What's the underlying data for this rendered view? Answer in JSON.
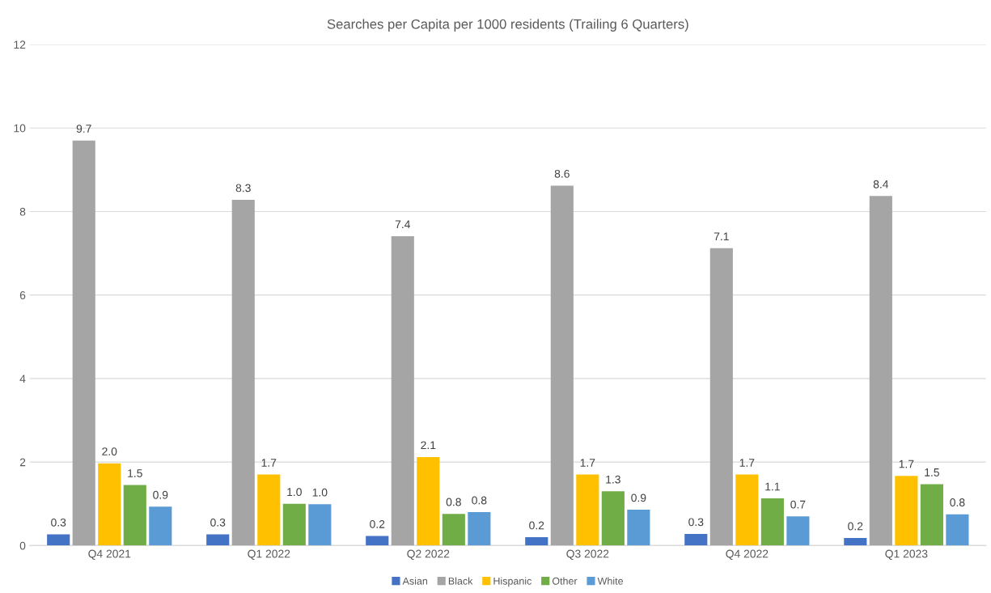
{
  "chart_data": {
    "type": "bar",
    "title": "Searches per Capita per 1000 residents (Trailing 6 Quarters)",
    "categories": [
      "Q4 2021",
      "Q1 2022",
      "Q2 2022",
      "Q3 2022",
      "Q4 2022",
      "Q1 2023"
    ],
    "series": [
      {
        "name": "Asian",
        "color": "#4472c4",
        "values": [
          0.27,
          0.27,
          0.23,
          0.2,
          0.28,
          0.18
        ],
        "value_labels": [
          "0.3",
          "0.3",
          "0.2",
          "0.2",
          "0.3",
          "0.2"
        ]
      },
      {
        "name": "Black",
        "color": "#a5a5a5",
        "values": [
          9.7,
          8.28,
          7.41,
          8.62,
          7.12,
          8.37
        ],
        "value_labels": [
          "9.7",
          "8.3",
          "7.4",
          "8.6",
          "7.1",
          "8.4"
        ]
      },
      {
        "name": "Hispanic",
        "color": "#ffc000",
        "values": [
          1.97,
          1.7,
          2.12,
          1.7,
          1.7,
          1.67
        ],
        "value_labels": [
          "2.0",
          "1.7",
          "2.1",
          "1.7",
          "1.7",
          "1.7"
        ]
      },
      {
        "name": "Other",
        "color": "#70ad47",
        "values": [
          1.45,
          1.0,
          0.76,
          1.3,
          1.13,
          1.47
        ],
        "value_labels": [
          "1.5",
          "1.0",
          "0.8",
          "1.3",
          "1.1",
          "1.5"
        ]
      },
      {
        "name": "White",
        "color": "#5b9bd5",
        "values": [
          0.93,
          0.99,
          0.8,
          0.86,
          0.7,
          0.75
        ],
        "value_labels": [
          "0.9",
          "1.0",
          "0.8",
          "0.9",
          "0.7",
          "0.8"
        ]
      }
    ],
    "ylim": [
      0,
      12
    ],
    "yticks": [
      0,
      2,
      4,
      6,
      8,
      10,
      12
    ],
    "grid": "y",
    "legend": "bottom"
  }
}
